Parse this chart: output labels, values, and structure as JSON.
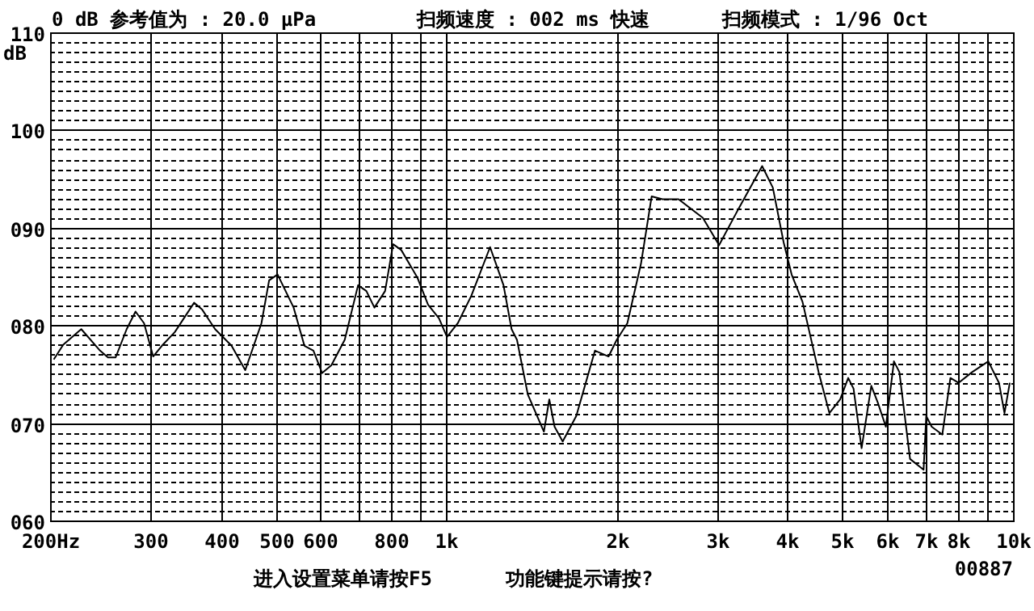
{
  "chart_data": {
    "type": "line",
    "title": "0 dB 参考值为 : 20.0 μPa",
    "ylabel": "dB",
    "annotations": [
      "扫频速度 : 002 ms 快速",
      "扫频模式 : 1/96 Oct",
      "进入设置菜单请按F5",
      "功能键提示请按?",
      "00887"
    ],
    "log": "x",
    "grid": true,
    "marker": "none",
    "line_style": "solid",
    "xlim": [
      200,
      10000
    ],
    "ylim": [
      60,
      110
    ],
    "xticks": [
      {
        "value": 200,
        "label": "200Hz"
      },
      300,
      400,
      500,
      600,
      {
        "value": 700,
        "label": null
      },
      800,
      {
        "value": 900,
        "label": null
      },
      {
        "value": 1000,
        "label": "1k"
      },
      {
        "value": 2000,
        "label": "2k"
      },
      {
        "value": 3000,
        "label": "3k"
      },
      {
        "value": 4000,
        "label": "4k"
      },
      {
        "value": 5000,
        "label": "5k"
      },
      {
        "value": 6000,
        "label": "6k"
      },
      {
        "value": 7000,
        "label": "7k"
      },
      {
        "value": 8000,
        "label": "8k"
      },
      {
        "value": 9000,
        "label": null
      },
      {
        "value": 10000,
        "label": "10k"
      }
    ],
    "yticks": [
      {
        "value": 60,
        "label": "060"
      },
      {
        "value": 61,
        "label": null
      },
      {
        "value": 62,
        "label": null
      },
      {
        "value": 63,
        "label": null
      },
      {
        "value": 64,
        "label": null
      },
      {
        "value": 65,
        "label": null
      },
      {
        "value": 66,
        "label": null
      },
      {
        "value": 67,
        "label": null
      },
      {
        "value": 68,
        "label": null
      },
      {
        "value": 69,
        "label": null
      },
      {
        "value": 70,
        "label": "070"
      },
      {
        "value": 71,
        "label": null
      },
      {
        "value": 72,
        "label": null
      },
      {
        "value": 73,
        "label": null
      },
      {
        "value": 74,
        "label": null
      },
      {
        "value": 75,
        "label": null
      },
      {
        "value": 76,
        "label": null
      },
      {
        "value": 77,
        "label": null
      },
      {
        "value": 78,
        "label": null
      },
      {
        "value": 79,
        "label": null
      },
      {
        "value": 80,
        "label": "080"
      },
      {
        "value": 81,
        "label": null
      },
      {
        "value": 82,
        "label": null
      },
      {
        "value": 83,
        "label": null
      },
      {
        "value": 84,
        "label": null
      },
      {
        "value": 85,
        "label": null
      },
      {
        "value": 86,
        "label": null
      },
      {
        "value": 87,
        "label": null
      },
      {
        "value": 88,
        "label": null
      },
      {
        "value": 89,
        "label": null
      },
      {
        "value": 90,
        "label": "090"
      },
      {
        "value": 91,
        "label": null
      },
      {
        "value": 92,
        "label": null
      },
      {
        "value": 93,
        "label": null
      },
      {
        "value": 94,
        "label": null
      },
      {
        "value": 95,
        "label": null
      },
      {
        "value": 96,
        "label": null
      },
      {
        "value": 97,
        "label": null
      },
      {
        "value": 98,
        "label": null
      },
      {
        "value": 99,
        "label": null
      },
      {
        "value": 100,
        "label": "100"
      },
      {
        "value": 101,
        "label": null
      },
      {
        "value": 102,
        "label": null
      },
      {
        "value": 103,
        "label": null
      },
      {
        "value": 104,
        "label": null
      },
      {
        "value": 105,
        "label": null
      },
      {
        "value": 106,
        "label": null
      },
      {
        "value": 107,
        "label": null
      },
      {
        "value": 108,
        "label": null
      },
      {
        "value": 109,
        "label": null
      },
      {
        "value": 110,
        "label": "110"
      }
    ],
    "series": [
      {
        "color": "#000000",
        "x": [
          203,
          211,
          227,
          245,
          253,
          261,
          273,
          283,
          293,
          304,
          315,
          332,
          359,
          371,
          391,
          418,
          442,
          472,
          487,
          504,
          538,
          562,
          583,
          604,
          627,
          662,
          699,
          723,
          747,
          780,
          806,
          833,
          889,
          929,
          971,
          1003,
          1048,
          1107,
          1195,
          1262,
          1304,
          1333,
          1393,
          1487,
          1520,
          1553,
          1605,
          1696,
          1830,
          1934,
          1999,
          2087,
          2206,
          2304,
          2407,
          2570,
          2836,
          3030,
          3270,
          3609,
          3769,
          3938,
          4068,
          4252,
          4540,
          4743,
          4955,
          5120,
          5232,
          5406,
          5623,
          5772,
          5966,
          6165,
          6303,
          6582,
          6954,
          7029,
          7187,
          7504,
          7755,
          8015,
          8472,
          9046,
          9447,
          9660,
          9870
        ],
        "values": [
          76.5,
          78.0,
          79.6,
          77.4,
          76.7,
          76.7,
          79.6,
          81.4,
          80.2,
          76.8,
          77.9,
          79.3,
          82.3,
          81.6,
          79.6,
          77.9,
          75.4,
          80.2,
          84.6,
          85.2,
          81.8,
          77.9,
          77.4,
          75.1,
          75.9,
          78.5,
          84.1,
          83.5,
          81.8,
          83.5,
          88.3,
          87.7,
          84.9,
          82.1,
          80.7,
          78.8,
          80.2,
          83.0,
          88.0,
          84.1,
          79.6,
          78.5,
          72.9,
          69.1,
          72.4,
          69.6,
          68.1,
          70.7,
          77.4,
          76.8,
          78.5,
          80.2,
          86.3,
          93.2,
          92.9,
          92.9,
          91.0,
          88.2,
          91.8,
          96.3,
          94.1,
          88.5,
          85.2,
          82.4,
          75.2,
          71.0,
          72.4,
          74.6,
          73.5,
          67.4,
          73.8,
          72.1,
          69.6,
          76.3,
          75.2,
          66.3,
          65.2,
          70.7,
          69.6,
          68.8,
          74.6,
          74.1,
          75.2,
          76.3,
          74.1,
          71.0,
          74.1
        ]
      }
    ]
  }
}
